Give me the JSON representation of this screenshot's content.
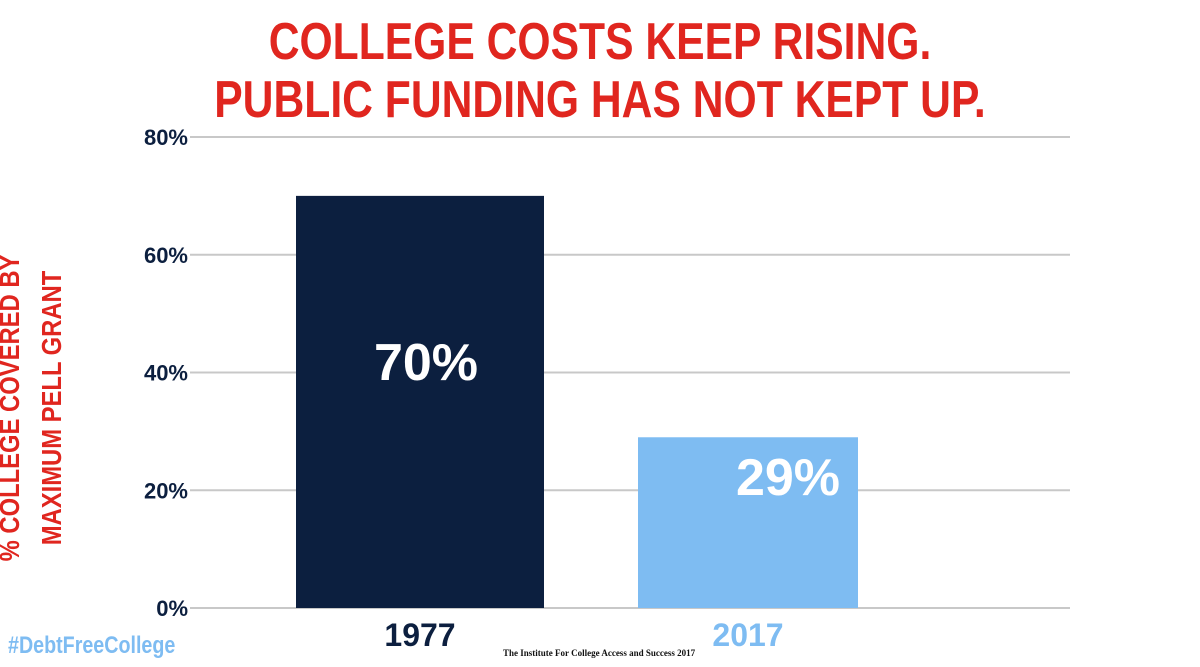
{
  "title_line1": "COLLEGE COSTS KEEP RISING.",
  "title_line2": "PUBLIC FUNDING HAS NOT KEPT UP.",
  "ylabel_line1": "% COLLEGE COVERED BY",
  "ylabel_line2": "MAXIMUM PELL GRANT",
  "hashtag": "#DebtFreeCollege",
  "source": "The Institute For College Access and Success 2017",
  "colors": {
    "title": "#e0261f",
    "bar_1977": "#0c1f3f",
    "bar_2017": "#7ebcf2",
    "axis_text": "#0c1f3f",
    "grid": "#c8c8c8"
  },
  "chart_data": {
    "type": "bar",
    "categories": [
      "1977",
      "2017"
    ],
    "values": [
      70,
      29
    ],
    "data_labels": [
      "70%",
      "29%"
    ],
    "ylim": [
      0,
      80
    ],
    "yticks": [
      0,
      20,
      40,
      60,
      80
    ],
    "ytick_labels": [
      "0%",
      "20%",
      "40%",
      "60%",
      "80%"
    ],
    "grid": true,
    "title": "COLLEGE COSTS KEEP RISING. PUBLIC FUNDING HAS NOT KEPT UP.",
    "ylabel": "% COLLEGE COVERED BY MAXIMUM PELL GRANT",
    "xlabel": ""
  }
}
